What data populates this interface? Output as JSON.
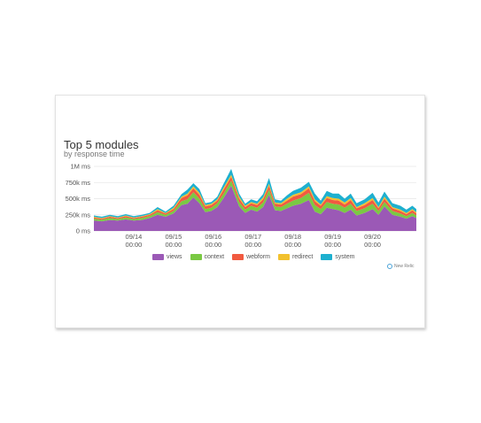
{
  "chart_data": {
    "type": "area",
    "stacked": true,
    "title": "Top 5 modules",
    "subtitle": "by response time",
    "yticks": [
      "1M ms",
      "750k ms",
      "500k ms",
      "250k ms",
      "0 ms"
    ],
    "ytick_values": [
      1000000,
      750000,
      500000,
      250000,
      0
    ],
    "ylim": [
      0,
      1000000
    ],
    "xlim": [
      0,
      8.1
    ],
    "xticks": [
      {
        "x": 1,
        "line1": "09/14",
        "line2": "00:00"
      },
      {
        "x": 2,
        "line1": "09/15",
        "line2": "00:00"
      },
      {
        "x": 3,
        "line1": "09/16",
        "line2": "00:00"
      },
      {
        "x": 4,
        "line1": "09/17",
        "line2": "00:00"
      },
      {
        "x": 5,
        "line1": "09/18",
        "line2": "00:00"
      },
      {
        "x": 6,
        "line1": "09/19",
        "line2": "00:00"
      },
      {
        "x": 7,
        "line1": "09/20",
        "line2": "00:00"
      }
    ],
    "grid": true,
    "legend_position": "bottom",
    "x": [
      0,
      0.2,
      0.4,
      0.6,
      0.8,
      1.0,
      1.2,
      1.4,
      1.6,
      1.8,
      2.0,
      2.2,
      2.35,
      2.5,
      2.65,
      2.8,
      2.95,
      3.1,
      3.25,
      3.45,
      3.65,
      3.8,
      3.95,
      4.1,
      4.25,
      4.4,
      4.55,
      4.7,
      4.85,
      5.0,
      5.2,
      5.4,
      5.55,
      5.7,
      5.85,
      6.0,
      6.15,
      6.3,
      6.45,
      6.6,
      6.8,
      7.0,
      7.15,
      7.3,
      7.5,
      7.7,
      7.85,
      8.0,
      8.1
    ],
    "series": [
      {
        "name": "views",
        "color": "#9b59b6",
        "values": [
          160000,
          150000,
          170000,
          160000,
          180000,
          160000,
          170000,
          200000,
          250000,
          220000,
          270000,
          400000,
          420000,
          520000,
          430000,
          290000,
          310000,
          370000,
          500000,
          700000,
          380000,
          280000,
          330000,
          300000,
          370000,
          560000,
          320000,
          310000,
          350000,
          390000,
          420000,
          480000,
          300000,
          260000,
          360000,
          340000,
          320000,
          280000,
          330000,
          240000,
          280000,
          340000,
          250000,
          380000,
          250000,
          220000,
          190000,
          230000,
          200000
        ]
      },
      {
        "name": "context",
        "color": "#7ac943",
        "values": [
          30000,
          25000,
          30000,
          25000,
          30000,
          25000,
          30000,
          30000,
          40000,
          30000,
          40000,
          60000,
          70000,
          80000,
          70000,
          50000,
          50000,
          60000,
          70000,
          80000,
          70000,
          50000,
          60000,
          60000,
          70000,
          80000,
          60000,
          60000,
          70000,
          80000,
          90000,
          110000,
          100000,
          80000,
          90000,
          80000,
          90000,
          80000,
          90000,
          70000,
          70000,
          80000,
          60000,
          70000,
          60000,
          50000,
          40000,
          50000,
          40000
        ]
      },
      {
        "name": "webform",
        "color": "#f15a40",
        "values": [
          20000,
          15000,
          20000,
          15000,
          20000,
          15000,
          20000,
          20000,
          30000,
          20000,
          30000,
          50000,
          60000,
          60000,
          60000,
          40000,
          40000,
          40000,
          60000,
          60000,
          50000,
          40000,
          40000,
          40000,
          50000,
          60000,
          40000,
          40000,
          50000,
          60000,
          60000,
          70000,
          60000,
          50000,
          60000,
          60000,
          60000,
          50000,
          60000,
          40000,
          50000,
          60000,
          40000,
          50000,
          40000,
          40000,
          30000,
          40000,
          30000
        ]
      },
      {
        "name": "redirect",
        "color": "#f2c12e",
        "values": [
          10000,
          10000,
          10000,
          10000,
          10000,
          10000,
          10000,
          10000,
          20000,
          10000,
          20000,
          20000,
          30000,
          30000,
          30000,
          20000,
          20000,
          20000,
          30000,
          30000,
          30000,
          20000,
          20000,
          20000,
          30000,
          30000,
          20000,
          20000,
          30000,
          30000,
          30000,
          30000,
          30000,
          20000,
          30000,
          30000,
          30000,
          30000,
          30000,
          20000,
          30000,
          30000,
          20000,
          30000,
          20000,
          20000,
          20000,
          20000,
          20000
        ]
      },
      {
        "name": "system",
        "color": "#1eb0cf",
        "values": [
          20000,
          20000,
          20000,
          20000,
          20000,
          20000,
          20000,
          20000,
          30000,
          20000,
          30000,
          40000,
          60000,
          50000,
          60000,
          30000,
          30000,
          40000,
          60000,
          90000,
          50000,
          30000,
          40000,
          40000,
          50000,
          90000,
          50000,
          40000,
          50000,
          60000,
          70000,
          70000,
          90000,
          60000,
          80000,
          70000,
          80000,
          60000,
          70000,
          60000,
          60000,
          80000,
          70000,
          80000,
          60000,
          60000,
          50000,
          50000,
          50000
        ]
      }
    ]
  },
  "brand": "New Relic"
}
